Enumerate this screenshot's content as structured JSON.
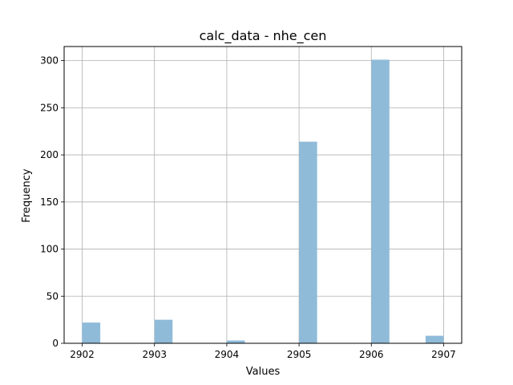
{
  "chart_data": {
    "type": "bar",
    "title": "calc_data - nhe_cen",
    "xlabel": "Values",
    "ylabel": "Frequency",
    "xlim": [
      2901.75,
      2907.25
    ],
    "ylim": [
      0,
      315
    ],
    "xticks": [
      2902,
      2903,
      2904,
      2905,
      2906,
      2907
    ],
    "yticks": [
      0,
      50,
      100,
      150,
      200,
      250,
      300
    ],
    "grid": true,
    "bar_color": "#8fbbd9",
    "bins": [
      {
        "x0": 2902.0,
        "x1": 2902.25,
        "value": 22
      },
      {
        "x0": 2903.0,
        "x1": 2903.25,
        "value": 25
      },
      {
        "x0": 2904.0,
        "x1": 2904.25,
        "value": 3
      },
      {
        "x0": 2905.0,
        "x1": 2905.25,
        "value": 214
      },
      {
        "x0": 2906.0,
        "x1": 2906.25,
        "value": 301
      },
      {
        "x0": 2906.75,
        "x1": 2907.0,
        "value": 8
      }
    ]
  }
}
